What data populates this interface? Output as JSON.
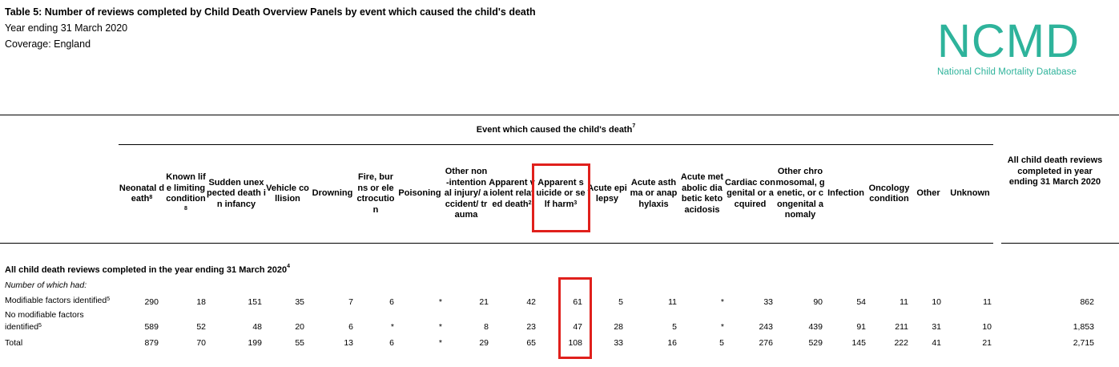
{
  "header": {
    "title": "Table 5: Number of reviews completed by Child Death Overview Panels by event which caused the child's death",
    "period": "Year ending 31 March 2020",
    "coverage": "Coverage: England"
  },
  "logo": {
    "text": "NCMD",
    "subtitle": "National Child Mortality Database"
  },
  "table": {
    "group_header": "Event which caused the child's death",
    "group_header_sup": "7",
    "columns": [
      {
        "label": "Neonatal death",
        "sup": "8"
      },
      {
        "label": "Known life limiting condition",
        "sup": "8"
      },
      {
        "label": "Sudden unexpected death in infancy",
        "sup": ""
      },
      {
        "label": "Vehicle collision",
        "sup": ""
      },
      {
        "label": "Drowning",
        "sup": ""
      },
      {
        "label": "Fire, burns or electrocution",
        "sup": ""
      },
      {
        "label": "Poisoning",
        "sup": ""
      },
      {
        "label": "Other non-intentional injury/ accident/ trauma",
        "sup": ""
      },
      {
        "label": "Apparent violent related death",
        "sup": "2"
      },
      {
        "label": "Apparent suicide or self harm",
        "sup": "3"
      },
      {
        "label": "Acute epilepsy",
        "sup": ""
      },
      {
        "label": "Acute asthma or anaphylaxis",
        "sup": ""
      },
      {
        "label": "Acute metabolic diabetic ketoacidosis",
        "sup": ""
      },
      {
        "label": "Cardiac congenital or acquired",
        "sup": ""
      },
      {
        "label": "Other chromosomal, genetic, or congenital anomaly",
        "sup": ""
      },
      {
        "label": "Infection",
        "sup": ""
      },
      {
        "label": "Oncology condition",
        "sup": ""
      },
      {
        "label": "Other",
        "sup": ""
      },
      {
        "label": "Unknown",
        "sup": ""
      }
    ],
    "all_column": "All child death reviews completed in year ending 31 March 2020",
    "section_title": "All child death reviews completed in the year ending 31 March 2020",
    "section_sup": "4",
    "note": "Number of which had:",
    "rows": [
      {
        "label": "Modifiable factors identified",
        "sup": "5",
        "values": [
          "290",
          "18",
          "151",
          "35",
          "7",
          "6",
          "*",
          "21",
          "42",
          "61",
          "5",
          "11",
          "*",
          "33",
          "90",
          "54",
          "11",
          "10",
          "11"
        ],
        "total": "862"
      },
      {
        "label": "No modifiable factors identified",
        "sup": "5",
        "values": [
          "589",
          "52",
          "48",
          "20",
          "6",
          "*",
          "*",
          "8",
          "23",
          "47",
          "28",
          "5",
          "*",
          "243",
          "439",
          "91",
          "211",
          "31",
          "10"
        ],
        "total": "1,853"
      },
      {
        "label": "Total",
        "sup": "",
        "values": [
          "879",
          "70",
          "199",
          "55",
          "13",
          "6",
          "*",
          "29",
          "65",
          "108",
          "33",
          "16",
          "5",
          "276",
          "529",
          "145",
          "222",
          "41",
          "21"
        ],
        "total": "2,715"
      }
    ]
  },
  "highlight_color": "#e0201c",
  "logo_color": "#2eb39b"
}
